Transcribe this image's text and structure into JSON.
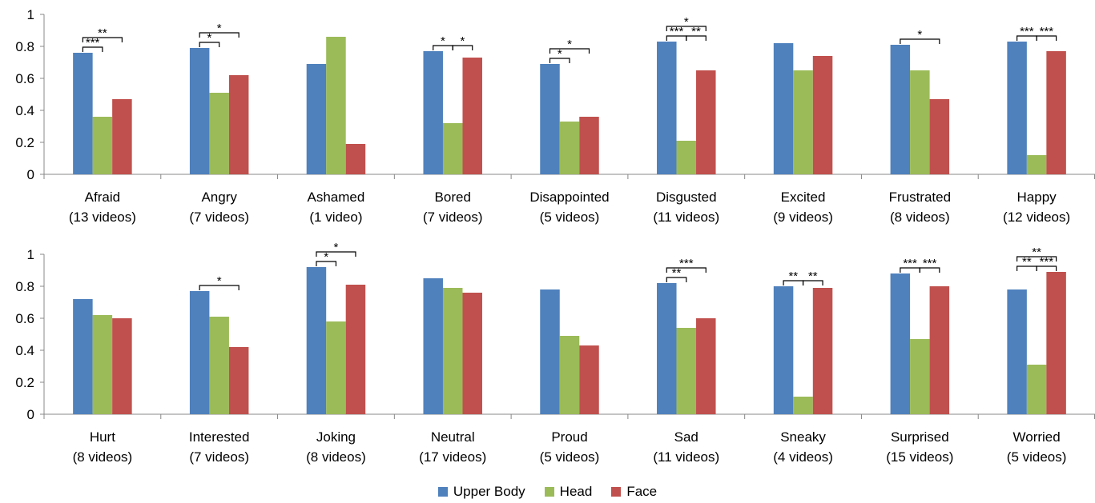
{
  "chart_data": [
    {
      "type": "bar",
      "categories": [
        "Afraid\n(13 videos)",
        "Angry\n(7 videos)",
        "Ashamed\n(1 video)",
        "Bored\n(7 videos)",
        "Disappointed\n(5 videos)",
        "Disgusted\n(11 videos)",
        "Excited\n(9 videos)",
        "Frustrated\n(8 videos)",
        "Happy\n(12 videos)"
      ],
      "series": [
        {
          "name": "Upper Body",
          "color": "#4F81BD",
          "values": [
            0.76,
            0.79,
            0.69,
            0.77,
            0.69,
            0.83,
            0.82,
            0.81,
            0.83
          ]
        },
        {
          "name": "Head",
          "color": "#9BBB59",
          "values": [
            0.36,
            0.51,
            0.86,
            0.32,
            0.33,
            0.21,
            0.65,
            0.65,
            0.12
          ]
        },
        {
          "name": "Face",
          "color": "#C0504D",
          "values": [
            0.47,
            0.62,
            0.19,
            0.73,
            0.36,
            0.65,
            0.74,
            0.47,
            0.77
          ]
        }
      ],
      "yticks": [
        "0",
        "0.2",
        "0.4",
        "0.6",
        "0.8",
        "1"
      ],
      "ylim": [
        0,
        1
      ],
      "significance": [
        {
          "category": 0,
          "from": 0,
          "to": 1,
          "label": "***",
          "level": 0
        },
        {
          "category": 0,
          "from": 0,
          "to": 2,
          "label": "**",
          "level": 1
        },
        {
          "category": 1,
          "from": 0,
          "to": 1,
          "label": "*",
          "level": 0
        },
        {
          "category": 1,
          "from": 0,
          "to": 2,
          "label": "*",
          "level": 1
        },
        {
          "category": 3,
          "from": 0,
          "to": 1,
          "label": "*",
          "level": 0
        },
        {
          "category": 3,
          "from": 1,
          "to": 2,
          "label": "*",
          "level": 0
        },
        {
          "category": 4,
          "from": 0,
          "to": 1,
          "label": "*",
          "level": 0
        },
        {
          "category": 4,
          "from": 0,
          "to": 2,
          "label": "*",
          "level": 1
        },
        {
          "category": 5,
          "from": 0,
          "to": 1,
          "label": "***",
          "level": 0
        },
        {
          "category": 5,
          "from": 1,
          "to": 2,
          "label": "**",
          "level": 0
        },
        {
          "category": 5,
          "from": 0,
          "to": 2,
          "label": "*",
          "level": 1
        },
        {
          "category": 7,
          "from": 0,
          "to": 2,
          "label": "*",
          "level": 0
        },
        {
          "category": 8,
          "from": 0,
          "to": 1,
          "label": "***",
          "level": 0
        },
        {
          "category": 8,
          "from": 1,
          "to": 2,
          "label": "***",
          "level": 0
        }
      ]
    },
    {
      "type": "bar",
      "categories": [
        "Hurt\n(8 videos)",
        "Interested\n(7 videos)",
        "Joking\n(8 videos)",
        "Neutral\n(17 videos)",
        "Proud\n(5 videos)",
        "Sad\n(11 videos)",
        "Sneaky\n(4 videos)",
        "Surprised\n(15 videos)",
        "Worried\n(5 videos)"
      ],
      "series": [
        {
          "name": "Upper Body",
          "color": "#4F81BD",
          "values": [
            0.72,
            0.77,
            0.92,
            0.85,
            0.78,
            0.82,
            0.8,
            0.88,
            0.78
          ]
        },
        {
          "name": "Head",
          "color": "#9BBB59",
          "values": [
            0.62,
            0.61,
            0.58,
            0.79,
            0.49,
            0.54,
            0.11,
            0.47,
            0.31
          ]
        },
        {
          "name": "Face",
          "color": "#C0504D",
          "values": [
            0.6,
            0.42,
            0.81,
            0.76,
            0.43,
            0.6,
            0.79,
            0.8,
            0.89
          ]
        }
      ],
      "yticks": [
        "0",
        "0.2",
        "0.4",
        "0.6",
        "0.8",
        "1"
      ],
      "ylim": [
        0,
        1
      ],
      "significance": [
        {
          "category": 1,
          "from": 0,
          "to": 2,
          "label": "*",
          "level": 0
        },
        {
          "category": 2,
          "from": 0,
          "to": 1,
          "label": "*",
          "level": 0
        },
        {
          "category": 2,
          "from": 0,
          "to": 2,
          "label": "*",
          "level": 1
        },
        {
          "category": 5,
          "from": 0,
          "to": 1,
          "label": "**",
          "level": 0
        },
        {
          "category": 5,
          "from": 0,
          "to": 2,
          "label": "***",
          "level": 1
        },
        {
          "category": 6,
          "from": 0,
          "to": 1,
          "label": "**",
          "level": 0
        },
        {
          "category": 6,
          "from": 1,
          "to": 2,
          "label": "**",
          "level": 0
        },
        {
          "category": 7,
          "from": 0,
          "to": 1,
          "label": "***",
          "level": 0
        },
        {
          "category": 7,
          "from": 1,
          "to": 2,
          "label": "***",
          "level": 0
        },
        {
          "category": 8,
          "from": 0,
          "to": 1,
          "label": "**",
          "level": 0
        },
        {
          "category": 8,
          "from": 1,
          "to": 2,
          "label": "***",
          "level": 0
        },
        {
          "category": 8,
          "from": 0,
          "to": 2,
          "label": "**",
          "level": 1
        }
      ]
    }
  ],
  "legend": [
    {
      "label": "Upper Body",
      "color": "#4F81BD"
    },
    {
      "label": "Head",
      "color": "#9BBB59"
    },
    {
      "label": "Face",
      "color": "#C0504D"
    }
  ]
}
